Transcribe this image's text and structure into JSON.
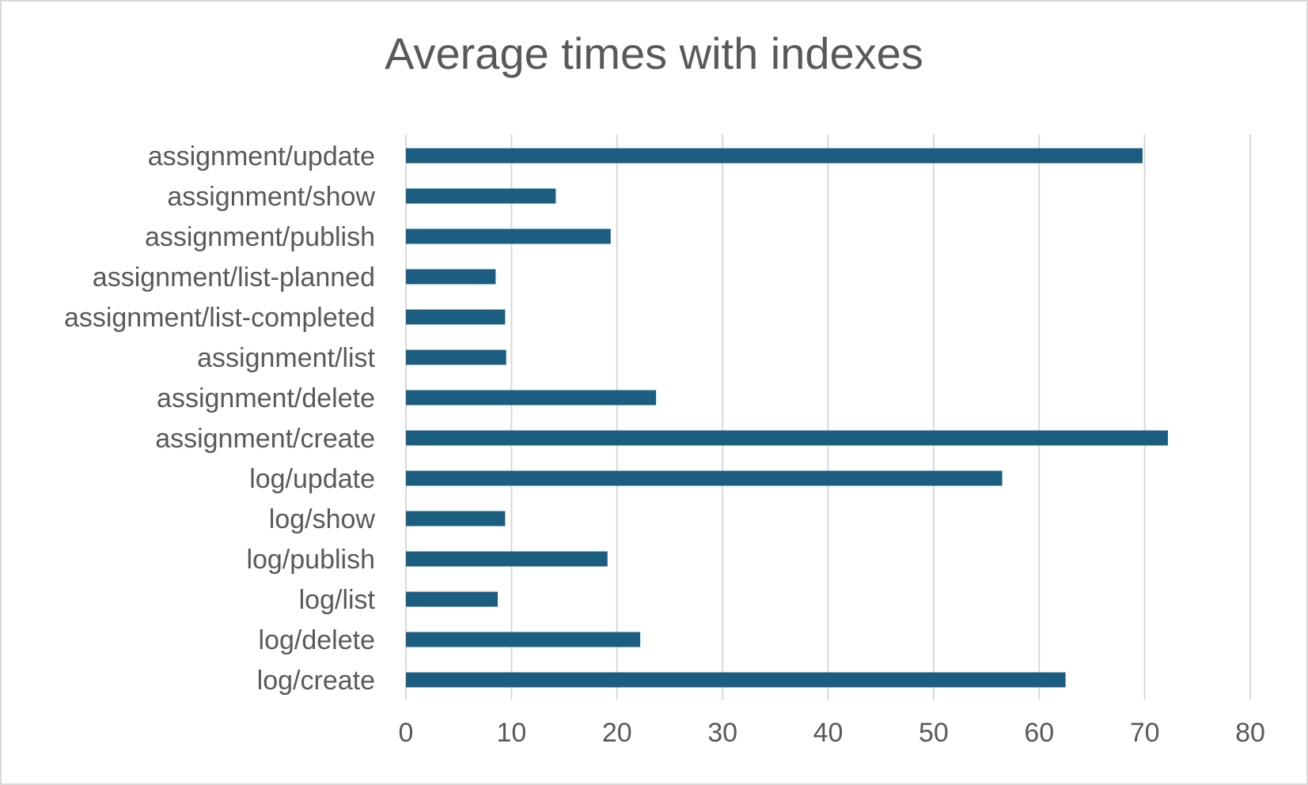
{
  "chart_data": {
    "type": "bar",
    "orientation": "horizontal",
    "title": "Average times with indexes",
    "xlabel": "",
    "ylabel": "",
    "categories": [
      "assignment/update",
      "assignment/show",
      "assignment/publish",
      "assignment/list-planned",
      "assignment/list-completed",
      "assignment/list",
      "assignment/delete",
      "assignment/create",
      "log/update",
      "log/show",
      "log/publish",
      "log/list",
      "log/delete",
      "log/create"
    ],
    "values": [
      69.8,
      14.2,
      19.4,
      8.5,
      9.4,
      9.5,
      23.7,
      72.2,
      56.5,
      9.4,
      19.1,
      8.7,
      22.2,
      62.5
    ],
    "xlim": [
      0,
      80
    ],
    "xticks": [
      0,
      10,
      20,
      30,
      40,
      50,
      60,
      70,
      80
    ],
    "grid": "vertical",
    "legend": "none",
    "colors": {
      "bar": "#1b5e80",
      "grid": "#d9d9d9",
      "text": "#595959"
    }
  }
}
